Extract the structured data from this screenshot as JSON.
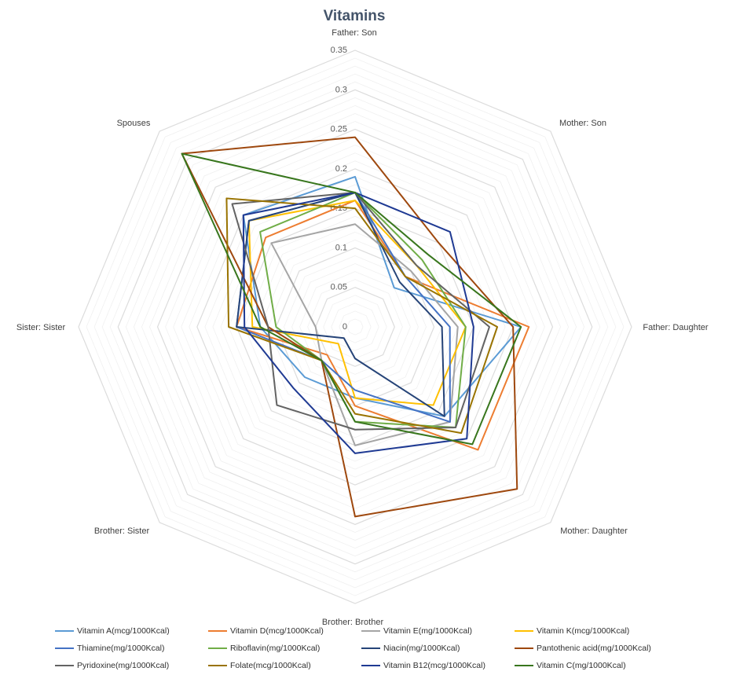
{
  "chart_data": {
    "type": "radar",
    "title": "Vitamins",
    "axes": [
      "Father: Son",
      "Mother: Son",
      "Father: Daughter",
      "Mother: Daughter",
      "Brother: Brother",
      "Brother: Sister",
      "Sister: Sister",
      "Spouses"
    ],
    "tick_labels": [
      "0",
      "0.05",
      "0.1",
      "0.15",
      "0.2",
      "0.25",
      "0.3",
      "0.35"
    ],
    "range": [
      0,
      0.35
    ],
    "legend_position": "bottom",
    "series": [
      {
        "name": "Vitamin A(mcg/1000Kcal)",
        "color": "#5b9bd5",
        "values": [
          0.19,
          0.07,
          0.21,
          0.16,
          0.09,
          0.09,
          0.12,
          0.2
        ]
      },
      {
        "name": "Vitamin D(mcg/1000Kcal)",
        "color": "#ed7d31",
        "values": [
          0.16,
          0.09,
          0.22,
          0.22,
          0.1,
          0.05,
          0.15,
          0.16
        ]
      },
      {
        "name": "Vitamin E(mg/1000Kcal)",
        "color": "#a5a5a5",
        "values": [
          0.13,
          0.1,
          0.13,
          0.17,
          0.15,
          0.06,
          0.05,
          0.15
        ]
      },
      {
        "name": "Vitamin K(mcg/1000Kcal)",
        "color": "#ffc000",
        "values": [
          0.16,
          0.11,
          0.14,
          0.14,
          0.09,
          0.03,
          0.13,
          0.19
        ]
      },
      {
        "name": "Thiamine(mg/1000Kcal)",
        "color": "#4472c4",
        "values": [
          0.17,
          0.09,
          0.12,
          0.17,
          0.08,
          0.06,
          0.15,
          0.19
        ]
      },
      {
        "name": "Riboflavin(mg/1000Kcal)",
        "color": "#70ad47",
        "values": [
          0.17,
          0.12,
          0.14,
          0.18,
          0.12,
          0.06,
          0.1,
          0.17
        ]
      },
      {
        "name": "Niacin(mg/1000Kcal)",
        "color": "#264478",
        "values": [
          0.17,
          0.08,
          0.11,
          0.16,
          0.04,
          0.02,
          0.15,
          0.19
        ]
      },
      {
        "name": "Pantothenic acid(mg/1000Kcal)",
        "color": "#9e480e",
        "values": [
          0.24,
          0.15,
          0.2,
          0.29,
          0.24,
          0.06,
          0.11,
          0.31
        ]
      },
      {
        "name": "Pyridoxine(mg/1000Kcal)",
        "color": "#636363",
        "values": [
          0.17,
          0.11,
          0.17,
          0.18,
          0.13,
          0.14,
          0.11,
          0.22
        ]
      },
      {
        "name": "Folate(mcg/1000Kcal)",
        "color": "#997300",
        "values": [
          0.15,
          0.09,
          0.18,
          0.19,
          0.11,
          0.06,
          0.16,
          0.23
        ]
      },
      {
        "name": "Vitamin B12(mcg/1000Kcal)",
        "color": "#1f3a93",
        "values": [
          0.17,
          0.17,
          0.15,
          0.2,
          0.16,
          0.11,
          0.14,
          0.2
        ]
      },
      {
        "name": "Vitamin C(mg/1000Kcal)",
        "color": "#38761d",
        "values": [
          0.17,
          0.13,
          0.21,
          0.21,
          0.12,
          0.06,
          0.12,
          0.31
        ]
      }
    ]
  }
}
